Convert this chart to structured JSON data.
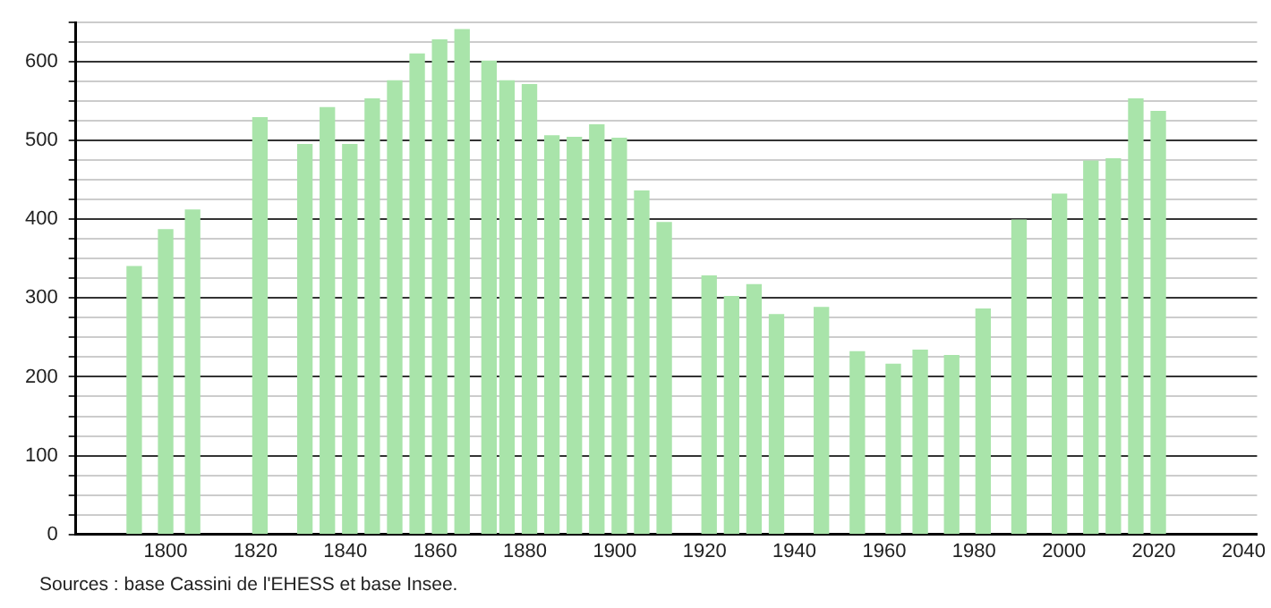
{
  "chart_data": {
    "type": "bar",
    "x": [
      1793,
      1800,
      1806,
      1821,
      1831,
      1836,
      1841,
      1846,
      1851,
      1856,
      1861,
      1866,
      1872,
      1876,
      1881,
      1886,
      1891,
      1896,
      1901,
      1906,
      1911,
      1921,
      1926,
      1931,
      1936,
      1946,
      1954,
      1962,
      1968,
      1975,
      1982,
      1990,
      1999,
      2006,
      2011,
      2016,
      2021
    ],
    "values": [
      340,
      387,
      412,
      529,
      495,
      542,
      495,
      553,
      576,
      610,
      628,
      641,
      601,
      576,
      571,
      506,
      504,
      520,
      503,
      436,
      396,
      328,
      302,
      317,
      279,
      288,
      232,
      216,
      234,
      227,
      286,
      399,
      432,
      474,
      477,
      553,
      537
    ],
    "color": "#a9e4aa",
    "xlim": [
      1780,
      2043
    ],
    "xticks": [
      1800,
      1820,
      1840,
      1860,
      1880,
      1900,
      1920,
      1940,
      1960,
      1980,
      2000,
      2020,
      2040
    ],
    "ylim": [
      0,
      650
    ],
    "yticks": [
      0,
      {
        "value": 25,
        "label": null
      },
      {
        "value": 50,
        "label": null
      },
      {
        "value": 75,
        "label": null
      },
      100,
      {
        "value": 125,
        "label": null
      },
      {
        "value": 150,
        "label": null
      },
      {
        "value": 175,
        "label": null
      },
      200,
      {
        "value": 225,
        "label": null
      },
      {
        "value": 250,
        "label": null
      },
      {
        "value": 275,
        "label": null
      },
      300,
      {
        "value": 325,
        "label": null
      },
      {
        "value": 350,
        "label": null
      },
      {
        "value": 375,
        "label": null
      },
      400,
      {
        "value": 425,
        "label": null
      },
      {
        "value": 450,
        "label": null
      },
      {
        "value": 475,
        "label": null
      },
      500,
      {
        "value": 525,
        "label": null
      },
      {
        "value": 550,
        "label": null
      },
      {
        "value": 575,
        "label": null
      },
      600,
      {
        "value": 625,
        "label": null
      },
      {
        "value": 650,
        "label": null
      }
    ],
    "grid": "y",
    "legend": false,
    "annotations": [
      "Sources : base Cassini de l'EHESS et base Insee."
    ]
  }
}
